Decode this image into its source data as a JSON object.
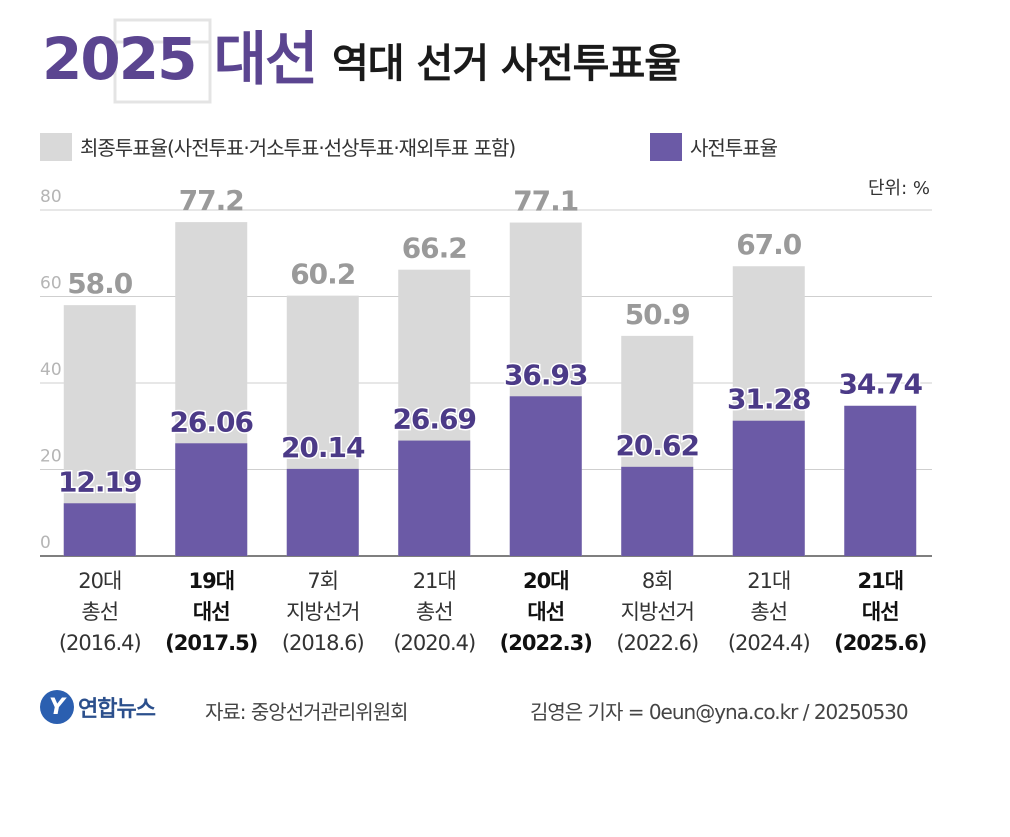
{
  "title": {
    "year": "2025 대선",
    "main": "역대 선거 사전투표율"
  },
  "colors": {
    "final": "#d9d9d9",
    "early": "#6b5aa6",
    "final_text": "#9a9a9a",
    "early_text": "#4b3a87"
  },
  "unit": "단위: %",
  "footer": {
    "logo_text": "연합뉴스",
    "source": "자료: 중앙선거관리위원회",
    "credit": "김영은 기자 = 0eun@yna.co.kr / 20250530"
  },
  "chart_data": {
    "type": "bar",
    "title": "역대 선거 사전투표율",
    "ylim": [
      0,
      80
    ],
    "yticks": [
      0,
      20,
      40,
      60,
      80
    ],
    "grid": true,
    "legend": [
      "최종투표율(사전투표·거소투표·선상투표·재외투표 포함)",
      "사전투표율"
    ],
    "categories": [
      {
        "line1": "20대",
        "line2": "총선",
        "line3": "(2016.4)",
        "bold": false
      },
      {
        "line1": "19대",
        "line2": "대선",
        "line3": "(2017.5)",
        "bold": true
      },
      {
        "line1": "7회",
        "line2": "지방선거",
        "line3": "(2018.6)",
        "bold": false
      },
      {
        "line1": "21대",
        "line2": "총선",
        "line3": "(2020.4)",
        "bold": false
      },
      {
        "line1": "20대",
        "line2": "대선",
        "line3": "(2022.3)",
        "bold": true
      },
      {
        "line1": "8회",
        "line2": "지방선거",
        "line3": "(2022.6)",
        "bold": false
      },
      {
        "line1": "21대",
        "line2": "총선",
        "line3": "(2024.4)",
        "bold": false
      },
      {
        "line1": "21대",
        "line2": "대선",
        "line3": "(2025.6)",
        "bold": true
      }
    ],
    "series": [
      {
        "name": "최종투표율",
        "values": [
          58.0,
          77.2,
          60.2,
          66.2,
          77.1,
          50.9,
          67.0,
          null
        ],
        "labels": [
          "58.0",
          "77.2",
          "60.2",
          "66.2",
          "77.1",
          "50.9",
          "67.0",
          ""
        ]
      },
      {
        "name": "사전투표율",
        "values": [
          12.19,
          26.06,
          20.14,
          26.69,
          36.93,
          20.62,
          31.28,
          34.74
        ],
        "labels": [
          "12.19",
          "26.06",
          "20.14",
          "26.69",
          "36.93",
          "20.62",
          "31.28",
          "34.74"
        ]
      }
    ]
  }
}
